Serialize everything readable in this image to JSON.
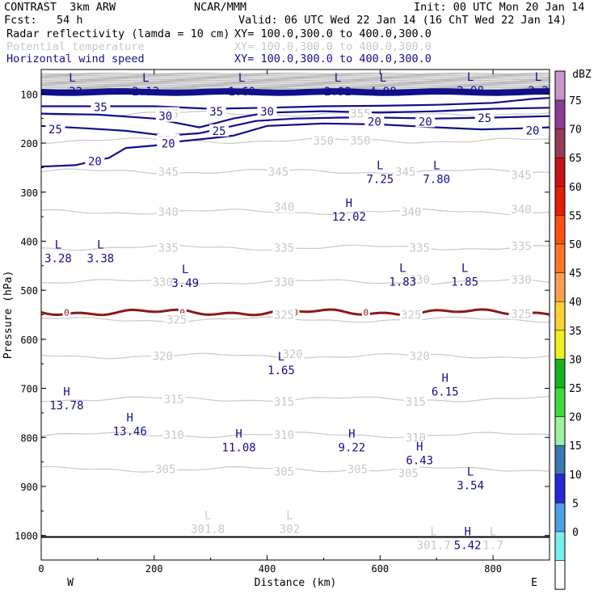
{
  "header": {
    "title_left": "CONTRAST  3km ARW",
    "title_center": "NCAR/MMM",
    "init": "Init: 00 UTC Mon 20 Jan 14",
    "fcst": "Fcst:   54 h",
    "valid": "Valid: 06 UTC Wed 22 Jan 14 (16 ChT Wed 22 Jan 14)",
    "fields": [
      {
        "label": "Radar reflectivity (lamda = 10 cm)",
        "xy": "XY= 100.0,300.0 to 400.0,300.0",
        "color": "#000000"
      },
      {
        "label": "Potential temperature",
        "xy": "XY= 100.0,300.0 to 400.0,300.0",
        "color": "#c8c8c8"
      },
      {
        "label": "Horizontal wind speed",
        "xy": "XY= 100.0,300.0 to 400.0,300.0",
        "color": "#10108a"
      }
    ]
  },
  "chart_data": {
    "type": "contour-cross-section",
    "xlabel": "Distance (km)",
    "ylabel": "Pressure (hPa)",
    "xlim": [
      0,
      900
    ],
    "ylim": [
      1050,
      50
    ],
    "x_ticks": [
      "0",
      "200",
      "400",
      "600",
      "800"
    ],
    "x_tick_values": [
      0,
      200,
      400,
      600,
      800
    ],
    "y_ticks": [
      "100",
      "200",
      "300",
      "400",
      "500",
      "600",
      "700",
      "800",
      "900",
      "1000"
    ],
    "y_tick_values": [
      100,
      200,
      300,
      400,
      500,
      600,
      700,
      800,
      900,
      1000
    ],
    "direction_labels": {
      "west": "W",
      "east": "E"
    },
    "colorbar": {
      "unit": "dBZ",
      "levels": [
        "75",
        "70",
        "65",
        "60",
        "55",
        "50",
        "45",
        "40",
        "35",
        "30",
        "25",
        "20",
        "15",
        "10",
        "5",
        "0"
      ],
      "colors": [
        "#c896c8",
        "#8c3c96",
        "#963c5a",
        "#c81414",
        "#e61e00",
        "#ff5014",
        "#ff7828",
        "#ffa050",
        "#ffd232",
        "#f0f01e",
        "#14b41e",
        "#3cdc3c",
        "#a0f0a0",
        "#3c78b4",
        "#2828dc",
        "#50a0e6",
        "#78f0f0",
        "#ffffff"
      ]
    },
    "theta_levels": [
      {
        "value": "355",
        "p": 140
      },
      {
        "value": "350",
        "p": 195
      },
      {
        "value": "345",
        "p": 258
      },
      {
        "value": "340",
        "p": 340
      },
      {
        "value": "335",
        "p": 413
      },
      {
        "value": "330",
        "p": 483
      },
      {
        "value": "325",
        "p": 560
      },
      {
        "value": "320",
        "p": 634
      },
      {
        "value": "315",
        "p": 722
      },
      {
        "value": "310",
        "p": 795
      },
      {
        "value": "305",
        "p": 865
      }
    ],
    "theta_labels": [
      {
        "text": "355",
        "x": 225,
        "p": 140
      },
      {
        "text": "355",
        "x": 565,
        "p": 140
      },
      {
        "text": "350",
        "x": 225,
        "p": 195
      },
      {
        "text": "350",
        "x": 500,
        "p": 195
      },
      {
        "text": "350",
        "x": 565,
        "p": 195
      },
      {
        "text": "345",
        "x": 225,
        "p": 258
      },
      {
        "text": "345",
        "x": 420,
        "p": 258
      },
      {
        "text": "345",
        "x": 645,
        "p": 258
      },
      {
        "text": "345",
        "x": 850,
        "p": 265
      },
      {
        "text": "340",
        "x": 225,
        "p": 340
      },
      {
        "text": "340",
        "x": 430,
        "p": 330
      },
      {
        "text": "340",
        "x": 655,
        "p": 340
      },
      {
        "text": "340",
        "x": 850,
        "p": 335
      },
      {
        "text": "335",
        "x": 225,
        "p": 413
      },
      {
        "text": "335",
        "x": 430,
        "p": 413
      },
      {
        "text": "335",
        "x": 670,
        "p": 413
      },
      {
        "text": "335",
        "x": 850,
        "p": 410
      },
      {
        "text": "330",
        "x": 215,
        "p": 483
      },
      {
        "text": "330",
        "x": 430,
        "p": 483
      },
      {
        "text": "330",
        "x": 670,
        "p": 478
      },
      {
        "text": "330",
        "x": 850,
        "p": 478
      },
      {
        "text": "325",
        "x": 240,
        "p": 560
      },
      {
        "text": "325",
        "x": 430,
        "p": 550
      },
      {
        "text": "325",
        "x": 655,
        "p": 550
      },
      {
        "text": "325",
        "x": 850,
        "p": 548
      },
      {
        "text": "320",
        "x": 215,
        "p": 634
      },
      {
        "text": "320",
        "x": 445,
        "p": 630
      },
      {
        "text": "320",
        "x": 670,
        "p": 634
      },
      {
        "text": "315",
        "x": 235,
        "p": 722
      },
      {
        "text": "315",
        "x": 430,
        "p": 727
      },
      {
        "text": "315",
        "x": 663,
        "p": 727
      },
      {
        "text": "310",
        "x": 235,
        "p": 795
      },
      {
        "text": "310",
        "x": 430,
        "p": 795
      },
      {
        "text": "310",
        "x": 663,
        "p": 800
      },
      {
        "text": "305",
        "x": 220,
        "p": 865
      },
      {
        "text": "305",
        "x": 430,
        "p": 870
      },
      {
        "text": "305",
        "x": 560,
        "p": 865
      },
      {
        "text": "305",
        "x": 650,
        "p": 873
      }
    ],
    "wind_contours": [
      {
        "value": "35",
        "x": [
          0,
          100,
          200,
          300,
          400,
          500,
          600,
          700,
          800,
          870,
          900
        ],
        "p": [
          125,
          125,
          125,
          130,
          128,
          125,
          124,
          122,
          118,
          110,
          108
        ]
      },
      {
        "value": "30",
        "x": [
          0,
          100,
          200,
          280,
          340,
          400,
          500,
          600,
          700,
          800,
          900
        ],
        "p": [
          140,
          142,
          150,
          168,
          150,
          138,
          135,
          138,
          135,
          130,
          128
        ]
      },
      {
        "value": "25",
        "x": [
          0,
          80,
          150,
          220,
          280,
          320,
          380,
          450,
          530,
          600,
          700,
          800,
          900
        ],
        "p": [
          165,
          170,
          175,
          185,
          180,
          170,
          155,
          150,
          148,
          148,
          150,
          148,
          145
        ]
      },
      {
        "value": "20",
        "x": [
          0,
          60,
          120,
          150,
          200,
          250,
          300,
          340,
          400,
          500,
          600,
          700,
          780,
          850,
          900
        ],
        "p": [
          248,
          245,
          230,
          210,
          205,
          196,
          190,
          185,
          165,
          160,
          162,
          168,
          172,
          170,
          168
        ]
      }
    ],
    "wind_labels": [
      {
        "text": "35",
        "x": 105,
        "p": 127
      },
      {
        "text": "35",
        "x": 310,
        "p": 136
      },
      {
        "text": "30",
        "x": 220,
        "p": 145
      },
      {
        "text": "30",
        "x": 400,
        "p": 136
      },
      {
        "text": "25",
        "x": 25,
        "p": 172
      },
      {
        "text": "25",
        "x": 315,
        "p": 175
      },
      {
        "text": "25",
        "x": 785,
        "p": 149
      },
      {
        "text": "20",
        "x": 95,
        "p": 237
      },
      {
        "text": "20",
        "x": 225,
        "p": 201
      },
      {
        "text": "20",
        "x": 590,
        "p": 156
      },
      {
        "text": "20",
        "x": 680,
        "p": 156
      },
      {
        "text": "20",
        "x": 870,
        "p": 174
      }
    ],
    "zero_dbz_line": {
      "value": "0",
      "label_x": [
        45,
        250,
        450,
        575,
        835
      ]
    },
    "extrema": [
      {
        "type": "L",
        "value": ".22",
        "x": 55,
        "p": 80,
        "color": "#10108a"
      },
      {
        "type": "L",
        "value": "2.13",
        "x": 185,
        "p": 80,
        "color": "#10108a"
      },
      {
        "type": "L",
        "value": "1.60",
        "x": 355,
        "p": 80,
        "color": "#10108a"
      },
      {
        "type": "L",
        "value": "2.92",
        "x": 525,
        "p": 80,
        "color": "#10108a"
      },
      {
        "type": "L",
        "value": "4.98",
        "x": 605,
        "p": 80,
        "color": "#10108a"
      },
      {
        "type": "L",
        "value": "2.98",
        "x": 760,
        "p": 78,
        "color": "#10108a"
      },
      {
        "type": "L",
        "value": "2.2",
        "x": 880,
        "p": 78,
        "color": "#10108a"
      },
      {
        "type": "L",
        "value": "7.25",
        "x": 600,
        "p": 258,
        "color": "#10108a"
      },
      {
        "type": "L",
        "value": "7.80",
        "x": 700,
        "p": 258,
        "color": "#10108a"
      },
      {
        "type": "H",
        "value": "12.02",
        "x": 545,
        "p": 335,
        "color": "#10108a"
      },
      {
        "type": "L",
        "value": "3.28",
        "x": 30,
        "p": 420,
        "color": "#10108a"
      },
      {
        "type": "L",
        "value": "3.38",
        "x": 105,
        "p": 420,
        "color": "#10108a"
      },
      {
        "type": "L",
        "value": "3.49",
        "x": 255,
        "p": 470,
        "color": "#10108a"
      },
      {
        "type": "L",
        "value": "1.83",
        "x": 640,
        "p": 468,
        "color": "#10108a"
      },
      {
        "type": "L",
        "value": "1.85",
        "x": 750,
        "p": 468,
        "color": "#10108a"
      },
      {
        "type": "L",
        "value": "1.65",
        "x": 425,
        "p": 648,
        "color": "#10108a"
      },
      {
        "type": "H",
        "value": "6.15",
        "x": 715,
        "p": 692,
        "color": "#10108a"
      },
      {
        "type": "H",
        "value": "13.78",
        "x": 45,
        "p": 720,
        "color": "#10108a"
      },
      {
        "type": "H",
        "value": "13.46",
        "x": 157,
        "p": 772,
        "color": "#10108a"
      },
      {
        "type": "H",
        "value": "11.08",
        "x": 350,
        "p": 805,
        "color": "#10108a"
      },
      {
        "type": "H",
        "value": "9.22",
        "x": 550,
        "p": 805,
        "color": "#10108a"
      },
      {
        "type": "H",
        "value": "6.43",
        "x": 670,
        "p": 832,
        "color": "#10108a"
      },
      {
        "type": "L",
        "value": "3.54",
        "x": 760,
        "p": 883,
        "color": "#10108a"
      },
      {
        "type": "L",
        "value": "301.8",
        "x": 295,
        "p": 972,
        "color": "#c8c8c8"
      },
      {
        "type": "L",
        "value": "302",
        "x": 440,
        "p": 972,
        "color": "#c8c8c8"
      },
      {
        "type": "L",
        "value": "301.7",
        "x": 695,
        "p": 1005,
        "color": "#c8c8c8"
      },
      {
        "type": "H",
        "value": "5.42",
        "x": 755,
        "p": 1005,
        "color": "#10108a"
      },
      {
        "type": "L",
        "value": "1.7",
        "x": 800,
        "p": 1005,
        "color": "#c8c8c8"
      }
    ],
    "surface_p": 1003
  }
}
